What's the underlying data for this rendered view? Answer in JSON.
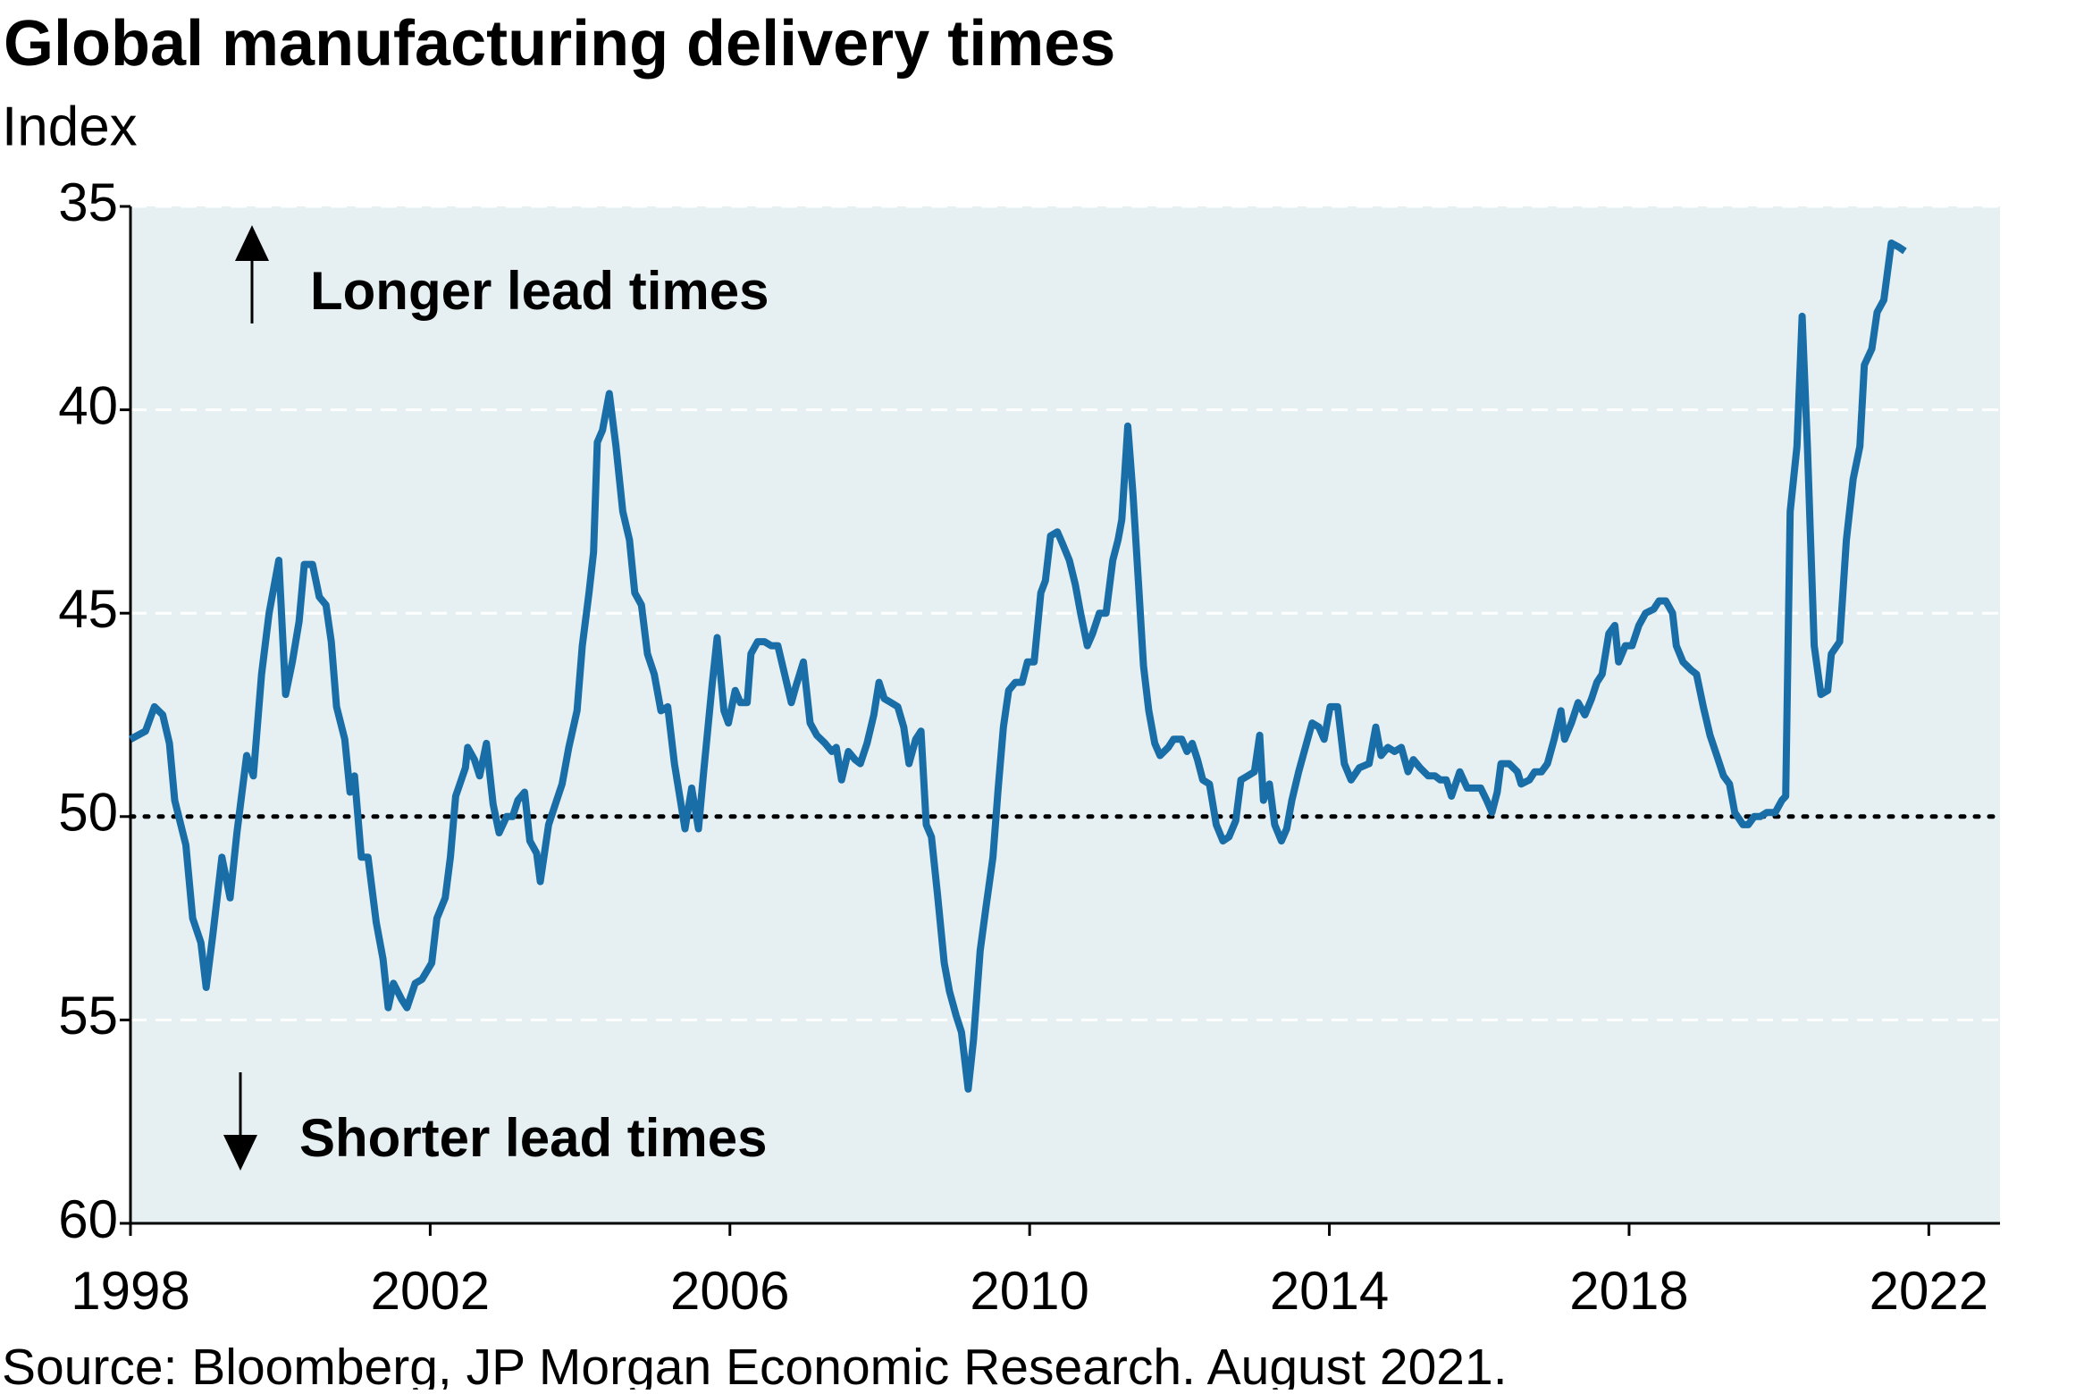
{
  "chart_data": {
    "type": "line",
    "title": "Global manufacturing delivery times",
    "subtitle": "Index",
    "annotations": [
      "Longer lead times",
      "Shorter lead times"
    ],
    "source": "Source: Bloomberg, JP Morgan Economic Research. August 2021.",
    "color": "#1a6ea8",
    "plot_background": "#e6f0f3",
    "grid": true,
    "reference_line": 50,
    "xlim": [
      1998,
      2022.95
    ],
    "xticks": [
      1998,
      2002,
      2006,
      2010,
      2014,
      2018,
      2022
    ],
    "ylim": [
      60,
      35
    ],
    "yticks": [
      35,
      40,
      45,
      50,
      55,
      60
    ],
    "x": [
      1998.0,
      1998.2,
      1998.32,
      1998.43,
      1998.52,
      1998.59,
      1998.74,
      1998.83,
      1998.94,
      1999.01,
      1999.1,
      1999.22,
      1999.33,
      1999.42,
      1999.55,
      1999.64,
      1999.75,
      1999.85,
      1999.98,
      2000.07,
      2000.16,
      2000.25,
      2000.32,
      2000.43,
      2000.52,
      2000.61,
      2000.68,
      2000.75,
      2000.86,
      2000.93,
      2000.99,
      2001.08,
      2001.17,
      2001.28,
      2001.37,
      2001.44,
      2001.51,
      2001.62,
      2001.69,
      2001.8,
      2001.89,
      2002.02,
      2002.09,
      2002.2,
      2002.27,
      2002.34,
      2002.47,
      2002.5,
      2002.59,
      2002.66,
      2002.75,
      2002.84,
      2002.92,
      2003.02,
      2003.1,
      2003.17,
      2003.26,
      2003.33,
      2003.42,
      2003.47,
      2003.58,
      2003.67,
      2003.76,
      2003.85,
      2003.96,
      2004.03,
      2004.12,
      2004.18,
      2004.23,
      2004.3,
      2004.39,
      2004.48,
      2004.57,
      2004.66,
      2004.73,
      2004.82,
      2004.9,
      2004.99,
      2005.08,
      2005.17,
      2005.26,
      2005.4,
      2005.49,
      2005.58,
      2005.65,
      2005.76,
      2005.83,
      2005.92,
      2005.98,
      2006.07,
      2006.14,
      2006.23,
      2006.28,
      2006.37,
      2006.46,
      2006.55,
      2006.64,
      2006.73,
      2006.82,
      2006.88,
      2006.98,
      2007.07,
      2007.16,
      2007.27,
      2007.36,
      2007.42,
      2007.49,
      2007.58,
      2007.67,
      2007.74,
      2007.83,
      2007.92,
      2007.99,
      2008.06,
      2008.15,
      2008.24,
      2008.32,
      2008.39,
      2008.48,
      2008.55,
      2008.62,
      2008.69,
      2008.77,
      2008.86,
      2008.93,
      2009.02,
      2009.09,
      2009.18,
      2009.25,
      2009.34,
      2009.42,
      2009.51,
      2009.58,
      2009.65,
      2009.72,
      2009.81,
      2009.9,
      2009.97,
      2010.06,
      2010.15,
      2010.21,
      2010.28,
      2010.37,
      2010.44,
      2010.53,
      2010.61,
      2010.68,
      2010.77,
      2010.84,
      2010.93,
      2011.02,
      2011.11,
      2011.18,
      2011.23,
      2011.31,
      2011.38,
      2011.45,
      2011.52,
      2011.59,
      2011.67,
      2011.74,
      2011.85,
      2011.92,
      2012.03,
      2012.1,
      2012.17,
      2012.24,
      2012.31,
      2012.4,
      2012.49,
      2012.58,
      2012.66,
      2012.75,
      2012.82,
      2012.91,
      2013.0,
      2013.07,
      2013.12,
      2013.2,
      2013.27,
      2013.36,
      2013.43,
      2013.5,
      2013.59,
      2013.68,
      2013.77,
      2013.86,
      2013.93,
      2014.01,
      2014.11,
      2014.2,
      2014.29,
      2014.4,
      2014.53,
      2014.62,
      2014.69,
      2014.78,
      2014.87,
      2014.96,
      2015.05,
      2015.12,
      2015.21,
      2015.32,
      2015.41,
      2015.48,
      2015.56,
      2015.63,
      2015.74,
      2015.84,
      2015.93,
      2016.02,
      2016.1,
      2016.17,
      2016.24,
      2016.29,
      2016.4,
      2016.51,
      2016.56,
      2016.67,
      2016.74,
      2016.83,
      2016.91,
      2017.0,
      2017.09,
      2017.14,
      2017.23,
      2017.32,
      2017.41,
      2017.5,
      2017.57,
      2017.64,
      2017.73,
      2017.81,
      2017.86,
      2017.95,
      2018.04,
      2018.13,
      2018.22,
      2018.33,
      2018.4,
      2018.49,
      2018.58,
      2018.63,
      2018.72,
      2018.83,
      2018.9,
      2018.99,
      2019.08,
      2019.17,
      2019.26,
      2019.34,
      2019.41,
      2019.52,
      2019.59,
      2019.67,
      2019.75,
      2019.84,
      2019.95,
      2020.04,
      2020.09,
      2020.15,
      2020.24,
      2020.31,
      2020.38,
      2020.47,
      2020.56,
      2020.65,
      2020.7,
      2020.81,
      2020.9,
      2020.99,
      2021.08,
      2021.14,
      2021.24,
      2021.31,
      2021.4,
      2021.5,
      2021.6,
      2021.68
    ],
    "values": [
      48.1,
      47.9,
      47.3,
      47.5,
      48.2,
      49.6,
      50.7,
      52.5,
      53.1,
      54.2,
      52.9,
      51.0,
      52.0,
      50.4,
      48.5,
      49.0,
      46.5,
      45.0,
      43.7,
      47.0,
      46.2,
      45.2,
      43.8,
      43.8,
      44.6,
      44.8,
      45.7,
      47.3,
      48.1,
      49.4,
      49.0,
      51.0,
      51.0,
      52.6,
      53.5,
      54.7,
      54.1,
      54.5,
      54.7,
      54.1,
      54.0,
      53.6,
      52.5,
      52.0,
      51.0,
      49.5,
      48.8,
      48.3,
      48.6,
      49.0,
      48.2,
      49.7,
      50.4,
      50.0,
      50.0,
      49.6,
      49.4,
      50.6,
      50.9,
      51.6,
      50.2,
      49.7,
      49.2,
      48.3,
      47.4,
      45.8,
      44.5,
      43.5,
      40.8,
      40.5,
      39.6,
      40.9,
      42.5,
      43.2,
      44.5,
      44.8,
      46.0,
      46.5,
      47.4,
      47.3,
      48.7,
      50.3,
      49.3,
      50.3,
      48.9,
      46.8,
      45.6,
      47.4,
      47.7,
      46.9,
      47.2,
      47.2,
      46.0,
      45.7,
      45.7,
      45.8,
      45.8,
      46.5,
      47.2,
      46.8,
      46.2,
      47.7,
      48.0,
      48.2,
      48.4,
      48.3,
      49.1,
      48.4,
      48.6,
      48.7,
      48.2,
      47.5,
      46.7,
      47.1,
      47.2,
      47.3,
      47.8,
      48.7,
      48.1,
      47.9,
      50.2,
      50.5,
      51.9,
      53.6,
      54.3,
      54.9,
      55.3,
      56.7,
      55.5,
      53.3,
      52.2,
      51.0,
      49.3,
      47.8,
      46.9,
      46.7,
      46.7,
      46.2,
      46.2,
      44.5,
      44.2,
      43.1,
      43.0,
      43.3,
      43.7,
      44.3,
      45.0,
      45.8,
      45.5,
      45.0,
      45.0,
      43.7,
      43.2,
      42.7,
      40.4,
      42.1,
      44.2,
      46.3,
      47.4,
      48.2,
      48.5,
      48.3,
      48.1,
      48.1,
      48.4,
      48.2,
      48.6,
      49.1,
      49.2,
      50.2,
      50.6,
      50.5,
      50.1,
      49.1,
      49.0,
      48.9,
      48.0,
      49.6,
      49.2,
      50.2,
      50.6,
      50.3,
      49.6,
      48.9,
      48.3,
      47.7,
      47.8,
      48.1,
      47.3,
      47.3,
      48.7,
      49.1,
      48.8,
      48.7,
      47.8,
      48.5,
      48.3,
      48.4,
      48.3,
      48.9,
      48.6,
      48.8,
      49.0,
      49.0,
      49.1,
      49.1,
      49.5,
      48.9,
      49.3,
      49.3,
      49.3,
      49.6,
      49.9,
      49.4,
      48.7,
      48.7,
      48.9,
      49.2,
      49.1,
      48.9,
      48.9,
      48.7,
      48.1,
      47.4,
      48.1,
      47.7,
      47.2,
      47.5,
      47.1,
      46.7,
      46.5,
      45.5,
      45.3,
      46.2,
      45.8,
      45.8,
      45.3,
      45.0,
      44.9,
      44.7,
      44.7,
      45.0,
      45.8,
      46.2,
      46.4,
      46.5,
      47.3,
      48.0,
      48.5,
      49.0,
      49.2,
      49.9,
      50.2,
      50.2,
      50.0,
      50.0,
      49.9,
      49.9,
      49.6,
      49.5,
      42.5,
      40.9,
      37.7,
      40.9,
      45.8,
      47.0,
      46.9,
      46.0,
      45.7,
      43.2,
      41.7,
      40.9,
      38.9,
      38.5,
      37.6,
      37.3,
      35.9,
      36.0,
      36.1
    ]
  }
}
